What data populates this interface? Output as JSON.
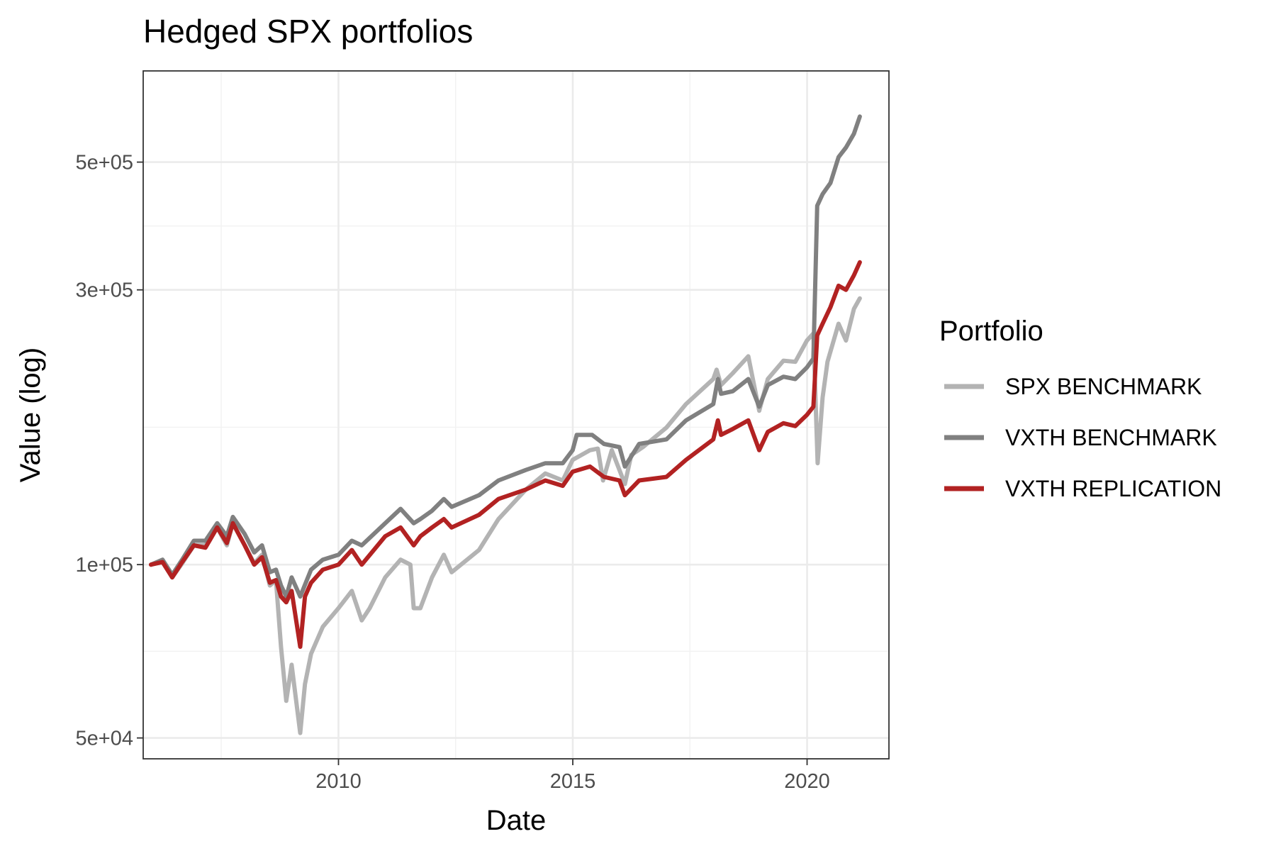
{
  "chart_data": {
    "type": "line",
    "title": "Hedged SPX portfolios",
    "xlabel": "Date",
    "ylabel": "Value (log)",
    "yscale": "log",
    "xlim": [
      "2005-11-01",
      "2021-09-30"
    ],
    "ylim": [
      46000,
      720000
    ],
    "x_ticks": [
      "2010",
      "2015",
      "2020"
    ],
    "y_ticks": [
      "5e+04",
      "1e+05",
      "3e+05",
      "5e+05"
    ],
    "grid": true,
    "legend": {
      "title": "Portfolio",
      "position": "right",
      "entries": [
        "SPX BENCHMARK",
        "VXTH BENCHMARK",
        "VXTH REPLICATION"
      ]
    },
    "series": [
      {
        "name": "SPX BENCHMARK",
        "color": "#b3b3b3",
        "points": [
          [
            "2006-01-01",
            100000
          ],
          [
            "2006-04-01",
            101500
          ],
          [
            "2006-06-15",
            95000
          ],
          [
            "2006-09-01",
            100500
          ],
          [
            "2006-12-01",
            108000
          ],
          [
            "2007-03-01",
            108000
          ],
          [
            "2007-06-01",
            116000
          ],
          [
            "2007-08-15",
            108000
          ],
          [
            "2007-10-01",
            118000
          ],
          [
            "2008-01-01",
            108000
          ],
          [
            "2008-03-15",
            100500
          ],
          [
            "2008-05-15",
            104000
          ],
          [
            "2008-07-15",
            92000
          ],
          [
            "2008-09-01",
            94000
          ],
          [
            "2008-10-10",
            72000
          ],
          [
            "2008-11-20",
            58000
          ],
          [
            "2009-01-01",
            67000
          ],
          [
            "2009-03-09",
            51000
          ],
          [
            "2009-04-15",
            62000
          ],
          [
            "2009-06-01",
            70000
          ],
          [
            "2009-09-01",
            78000
          ],
          [
            "2010-01-01",
            84000
          ],
          [
            "2010-04-15",
            90000
          ],
          [
            "2010-07-01",
            80000
          ],
          [
            "2010-09-01",
            84000
          ],
          [
            "2010-12-31",
            95000
          ],
          [
            "2011-04-30",
            102000
          ],
          [
            "2011-07-15",
            100000
          ],
          [
            "2011-08-10",
            84000
          ],
          [
            "2011-10-01",
            84000
          ],
          [
            "2011-12-31",
            95000
          ],
          [
            "2012-04-01",
            104000
          ],
          [
            "2012-06-01",
            97000
          ],
          [
            "2012-12-31",
            106000
          ],
          [
            "2013-06-01",
            120000
          ],
          [
            "2013-12-31",
            135000
          ],
          [
            "2014-06-01",
            144000
          ],
          [
            "2014-10-15",
            140000
          ],
          [
            "2014-12-31",
            152000
          ],
          [
            "2015-05-15",
            158000
          ],
          [
            "2015-07-15",
            159000
          ],
          [
            "2015-08-25",
            140000
          ],
          [
            "2015-11-01",
            158000
          ],
          [
            "2016-02-11",
            138000
          ],
          [
            "2016-04-01",
            155000
          ],
          [
            "2016-07-01",
            160000
          ],
          [
            "2016-12-31",
            173000
          ],
          [
            "2017-06-01",
            190000
          ],
          [
            "2017-12-31",
            210000
          ],
          [
            "2018-01-26",
            218000
          ],
          [
            "2018-03-01",
            205000
          ],
          [
            "2018-06-01",
            215000
          ],
          [
            "2018-09-30",
            230000
          ],
          [
            "2018-12-24",
            185000
          ],
          [
            "2019-03-01",
            210000
          ],
          [
            "2019-07-01",
            226000
          ],
          [
            "2019-10-01",
            225000
          ],
          [
            "2019-12-31",
            245000
          ],
          [
            "2020-02-19",
            252000
          ],
          [
            "2020-03-23",
            150000
          ],
          [
            "2020-05-01",
            195000
          ],
          [
            "2020-06-08",
            225000
          ],
          [
            "2020-09-02",
            262000
          ],
          [
            "2020-10-30",
            245000
          ],
          [
            "2020-12-31",
            278000
          ],
          [
            "2021-02-15",
            290000
          ]
        ]
      },
      {
        "name": "VXTH BENCHMARK",
        "color": "#808080",
        "points": [
          [
            "2006-01-01",
            100000
          ],
          [
            "2006-04-01",
            102000
          ],
          [
            "2006-06-15",
            96000
          ],
          [
            "2006-09-01",
            102000
          ],
          [
            "2006-12-01",
            110000
          ],
          [
            "2007-03-01",
            110000
          ],
          [
            "2007-06-01",
            118000
          ],
          [
            "2007-08-15",
            112000
          ],
          [
            "2007-10-01",
            121000
          ],
          [
            "2008-01-01",
            113000
          ],
          [
            "2008-03-15",
            105000
          ],
          [
            "2008-05-15",
            108000
          ],
          [
            "2008-07-15",
            97000
          ],
          [
            "2008-09-01",
            98000
          ],
          [
            "2008-10-10",
            92000
          ],
          [
            "2008-11-20",
            88000
          ],
          [
            "2009-01-01",
            95000
          ],
          [
            "2009-03-09",
            88000
          ],
          [
            "2009-06-01",
            98000
          ],
          [
            "2009-09-01",
            102000
          ],
          [
            "2010-01-01",
            104000
          ],
          [
            "2010-04-15",
            110000
          ],
          [
            "2010-07-01",
            108000
          ],
          [
            "2010-12-31",
            118000
          ],
          [
            "2011-04-30",
            125000
          ],
          [
            "2011-08-10",
            118000
          ],
          [
            "2011-10-01",
            120000
          ],
          [
            "2011-12-31",
            124000
          ],
          [
            "2012-04-01",
            130000
          ],
          [
            "2012-06-01",
            126000
          ],
          [
            "2012-12-31",
            132000
          ],
          [
            "2013-06-01",
            140000
          ],
          [
            "2013-12-31",
            146000
          ],
          [
            "2014-06-01",
            150000
          ],
          [
            "2014-10-15",
            150000
          ],
          [
            "2014-12-31",
            158000
          ],
          [
            "2015-02-01",
            168000
          ],
          [
            "2015-06-01",
            168000
          ],
          [
            "2015-09-01",
            162000
          ],
          [
            "2015-12-31",
            160000
          ],
          [
            "2016-02-11",
            148000
          ],
          [
            "2016-06-01",
            162000
          ],
          [
            "2016-12-31",
            165000
          ],
          [
            "2017-06-01",
            178000
          ],
          [
            "2017-12-31",
            190000
          ],
          [
            "2018-02-05",
            210000
          ],
          [
            "2018-03-01",
            198000
          ],
          [
            "2018-06-01",
            200000
          ],
          [
            "2018-09-30",
            210000
          ],
          [
            "2018-12-24",
            188000
          ],
          [
            "2019-03-01",
            205000
          ],
          [
            "2019-07-01",
            212000
          ],
          [
            "2019-10-01",
            210000
          ],
          [
            "2019-12-31",
            220000
          ],
          [
            "2020-02-19",
            228000
          ],
          [
            "2020-03-20",
            420000
          ],
          [
            "2020-05-01",
            440000
          ],
          [
            "2020-07-01",
            460000
          ],
          [
            "2020-09-02",
            510000
          ],
          [
            "2020-10-30",
            530000
          ],
          [
            "2020-12-31",
            560000
          ],
          [
            "2021-02-15",
            600000
          ]
        ]
      },
      {
        "name": "VXTH REPLICATION",
        "color": "#b22222",
        "points": [
          [
            "2006-01-01",
            100000
          ],
          [
            "2006-04-01",
            101000
          ],
          [
            "2006-06-15",
            95000
          ],
          [
            "2006-09-01",
            101000
          ],
          [
            "2006-12-01",
            108000
          ],
          [
            "2007-03-01",
            107000
          ],
          [
            "2007-06-01",
            116000
          ],
          [
            "2007-08-15",
            109000
          ],
          [
            "2007-10-01",
            118000
          ],
          [
            "2008-01-01",
            108000
          ],
          [
            "2008-03-15",
            100000
          ],
          [
            "2008-05-15",
            103000
          ],
          [
            "2008-07-15",
            93000
          ],
          [
            "2008-09-01",
            94000
          ],
          [
            "2008-10-10",
            88000
          ],
          [
            "2008-11-20",
            86000
          ],
          [
            "2009-01-01",
            90000
          ],
          [
            "2009-03-09",
            72000
          ],
          [
            "2009-04-15",
            88000
          ],
          [
            "2009-06-01",
            93000
          ],
          [
            "2009-09-01",
            98000
          ],
          [
            "2010-01-01",
            100000
          ],
          [
            "2010-04-15",
            106000
          ],
          [
            "2010-07-01",
            100000
          ],
          [
            "2010-12-31",
            112000
          ],
          [
            "2011-04-30",
            116000
          ],
          [
            "2011-08-10",
            108000
          ],
          [
            "2011-10-01",
            112000
          ],
          [
            "2011-12-31",
            116000
          ],
          [
            "2012-04-01",
            120000
          ],
          [
            "2012-06-01",
            116000
          ],
          [
            "2012-12-31",
            122000
          ],
          [
            "2013-06-01",
            130000
          ],
          [
            "2013-12-31",
            135000
          ],
          [
            "2014-06-01",
            140000
          ],
          [
            "2014-10-15",
            137000
          ],
          [
            "2014-12-31",
            145000
          ],
          [
            "2015-05-15",
            148000
          ],
          [
            "2015-09-01",
            142000
          ],
          [
            "2015-12-31",
            140000
          ],
          [
            "2016-02-11",
            132000
          ],
          [
            "2016-06-01",
            140000
          ],
          [
            "2016-12-31",
            142000
          ],
          [
            "2017-06-01",
            152000
          ],
          [
            "2017-12-31",
            165000
          ],
          [
            "2018-02-05",
            178000
          ],
          [
            "2018-03-01",
            168000
          ],
          [
            "2018-06-01",
            172000
          ],
          [
            "2018-09-30",
            178000
          ],
          [
            "2018-12-24",
            158000
          ],
          [
            "2019-03-01",
            170000
          ],
          [
            "2019-07-01",
            176000
          ],
          [
            "2019-10-01",
            174000
          ],
          [
            "2019-12-31",
            182000
          ],
          [
            "2020-02-19",
            188000
          ],
          [
            "2020-03-20",
            250000
          ],
          [
            "2020-05-01",
            262000
          ],
          [
            "2020-07-01",
            280000
          ],
          [
            "2020-09-02",
            305000
          ],
          [
            "2020-10-30",
            300000
          ],
          [
            "2020-12-31",
            318000
          ],
          [
            "2021-02-15",
            335000
          ]
        ]
      }
    ]
  }
}
